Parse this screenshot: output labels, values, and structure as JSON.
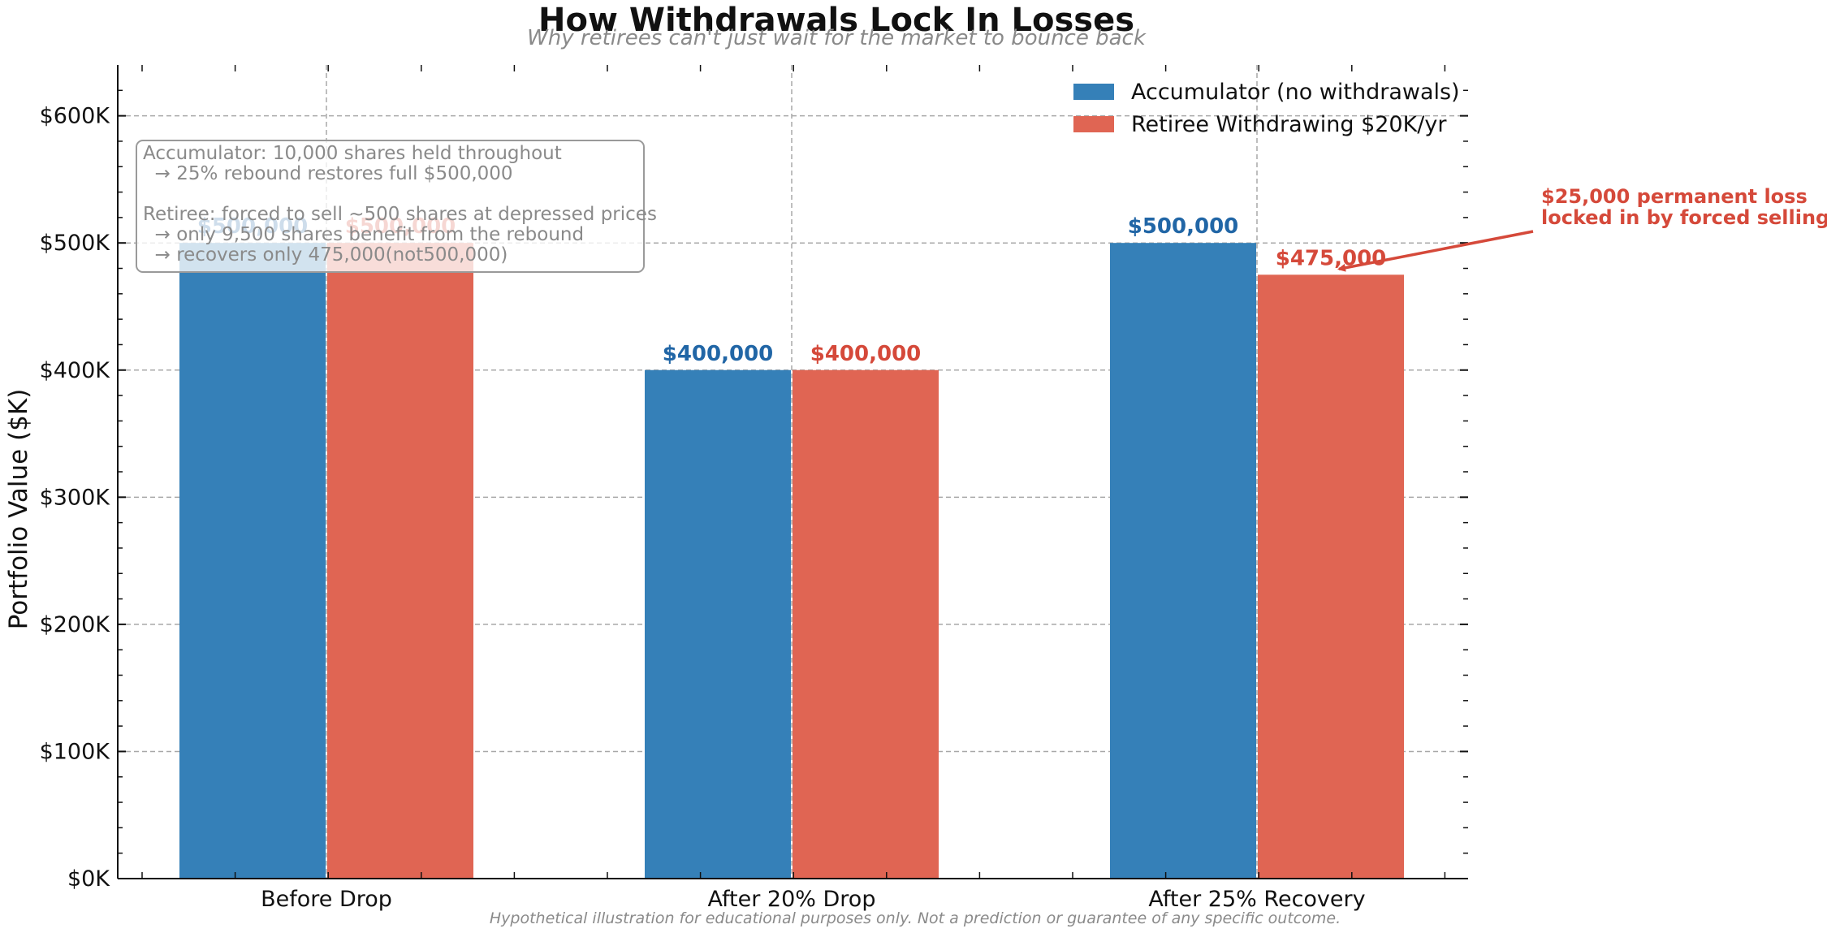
{
  "chart_data": {
    "type": "bar",
    "title": "How Withdrawals Lock In Losses",
    "subtitle": "Why retirees can't just wait for the market to bounce back",
    "xlabel": "",
    "ylabel": "Portfolio Value ($K)",
    "categories": [
      "Before Drop",
      "After 20% Drop",
      "After 25% Recovery"
    ],
    "ylim": [
      0,
      640000
    ],
    "yticks": [
      0,
      100000,
      200000,
      300000,
      400000,
      500000,
      600000
    ],
    "ytick_labels": [
      "$0K",
      "$100K",
      "$200K",
      "$300K",
      "$400K",
      "$500K",
      "$600K"
    ],
    "grid": true,
    "legend_position": "top-right",
    "series": [
      {
        "name": "Accumulator (no withdrawals)",
        "color": "#3580b8",
        "label_color": "#2166a6",
        "values": [
          500000,
          400000,
          500000
        ],
        "labels": [
          "$500,000",
          "$400,000",
          "$500,000"
        ]
      },
      {
        "name": "Retiree Withdrawing $20K/yr",
        "color": "#e06553",
        "label_color": "#d5493a",
        "values": [
          500000,
          400000,
          475000
        ],
        "labels": [
          "$500,000",
          "$400,000",
          "$475,000"
        ]
      }
    ],
    "note_box": [
      "Accumulator: 10,000 shares held throughout",
      "  → 25% rebound restores full $500,000",
      "",
      "Retiree: forced to sell ~500 shares at depressed prices",
      "  → only 9,500 shares benefit from the rebound",
      "  → recovers only 475,000(not500,000)"
    ],
    "annotation": {
      "lines": [
        "$25,000 permanent loss",
        "locked in by forced selling"
      ],
      "color": "#d5493a",
      "category": "After 25% Recovery",
      "value": 475000
    },
    "footer": "Hypothetical illustration for educational purposes only. Not a prediction or guarantee of any specific outcome."
  }
}
